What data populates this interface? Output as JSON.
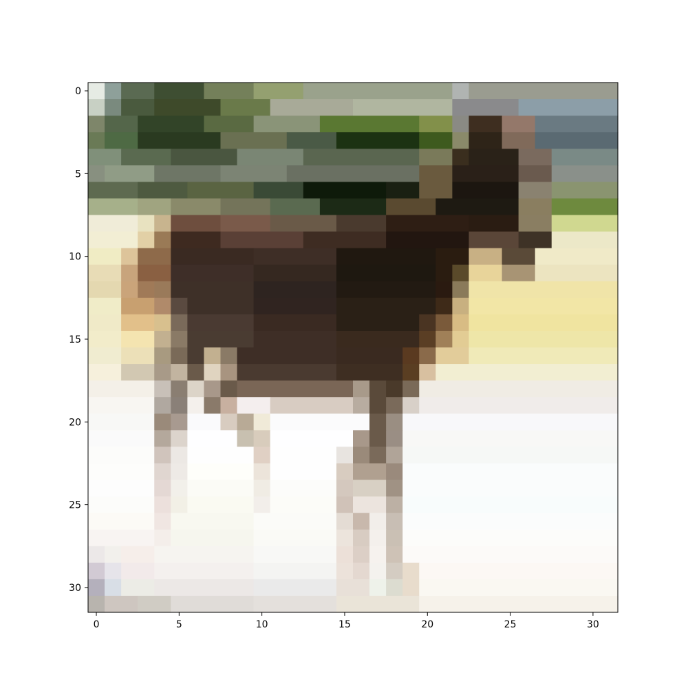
{
  "image": {
    "grid_rows": 32,
    "grid_cols": 32,
    "subject": "pixelated low-resolution photo of a dark brown horse standing on snow",
    "palette": {
      "snow": "#f6f4f0",
      "horse": "#2e221c",
      "foliage": "#4a5a3a",
      "grass": "#e8e2a8"
    }
  },
  "axes": {
    "x_ticks": [
      "0",
      "5",
      "10",
      "15",
      "20",
      "25",
      "30"
    ],
    "y_ticks": [
      "0",
      "5",
      "10",
      "15",
      "20",
      "25",
      "30"
    ],
    "x_tick_values": [
      0,
      5,
      10,
      15,
      20,
      25,
      30
    ],
    "y_tick_values": [
      0,
      5,
      10,
      15,
      20,
      25,
      30
    ]
  }
}
